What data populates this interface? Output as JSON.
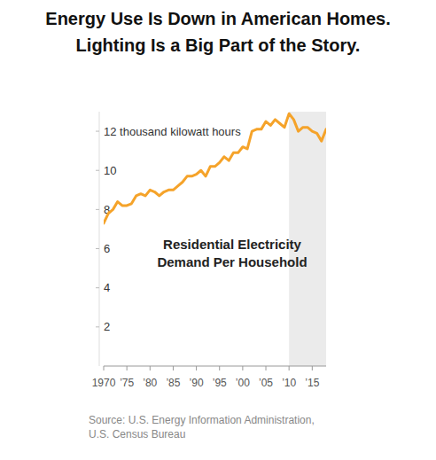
{
  "chart_data": {
    "type": "line",
    "title": "Energy Use Is Down in American Homes.",
    "subtitle": "Lighting Is a Big Part of the Story.",
    "annotation": [
      "Residential Electricity",
      "Demand Per Household"
    ],
    "source": [
      "Source: U.S. Energy Information Administration,",
      "U.S. Census Bureau"
    ],
    "x": [
      1970,
      1971,
      1972,
      1973,
      1974,
      1975,
      1976,
      1977,
      1978,
      1979,
      1980,
      1981,
      1982,
      1983,
      1984,
      1985,
      1986,
      1987,
      1988,
      1989,
      1990,
      1991,
      1992,
      1993,
      1994,
      1995,
      1996,
      1997,
      1998,
      1999,
      2000,
      2001,
      2002,
      2003,
      2004,
      2005,
      2006,
      2007,
      2008,
      2009,
      2010,
      2011,
      2012,
      2013,
      2014,
      2015,
      2016,
      2017,
      2018
    ],
    "values": [
      7.3,
      7.8,
      8.0,
      8.4,
      8.2,
      8.2,
      8.3,
      8.7,
      8.8,
      8.7,
      9.0,
      8.9,
      8.7,
      8.9,
      9.0,
      9.0,
      9.2,
      9.4,
      9.7,
      9.7,
      9.8,
      10.0,
      9.7,
      10.2,
      10.2,
      10.4,
      10.7,
      10.5,
      10.9,
      10.9,
      11.2,
      11.1,
      12.0,
      12.1,
      12.1,
      12.5,
      12.3,
      12.6,
      12.4,
      12.2,
      12.9,
      12.6,
      12.0,
      12.2,
      12.2,
      12.0,
      11.9,
      11.5,
      12.1
    ],
    "color": "#f5a32a",
    "highlight": [
      2010,
      2018
    ],
    "xlim": [
      1970,
      2018
    ],
    "xticks": [
      1970,
      {
        "value": 1975,
        "label": "’75"
      },
      {
        "value": 1980,
        "label": "’80"
      },
      {
        "value": 1985,
        "label": "’85"
      },
      {
        "value": 1990,
        "label": "’90"
      },
      {
        "value": 1995,
        "label": "’95"
      },
      {
        "value": 2000,
        "label": "’00"
      },
      {
        "value": 2005,
        "label": "’05"
      },
      {
        "value": 2010,
        "label": "’10"
      },
      {
        "value": 2015,
        "label": "’15"
      }
    ],
    "ylim": [
      0,
      13
    ],
    "yticks": [
      2,
      4,
      6,
      8,
      10,
      {
        "value": 12,
        "label": "12 thousand kilowatt hours"
      }
    ],
    "grid": false
  }
}
